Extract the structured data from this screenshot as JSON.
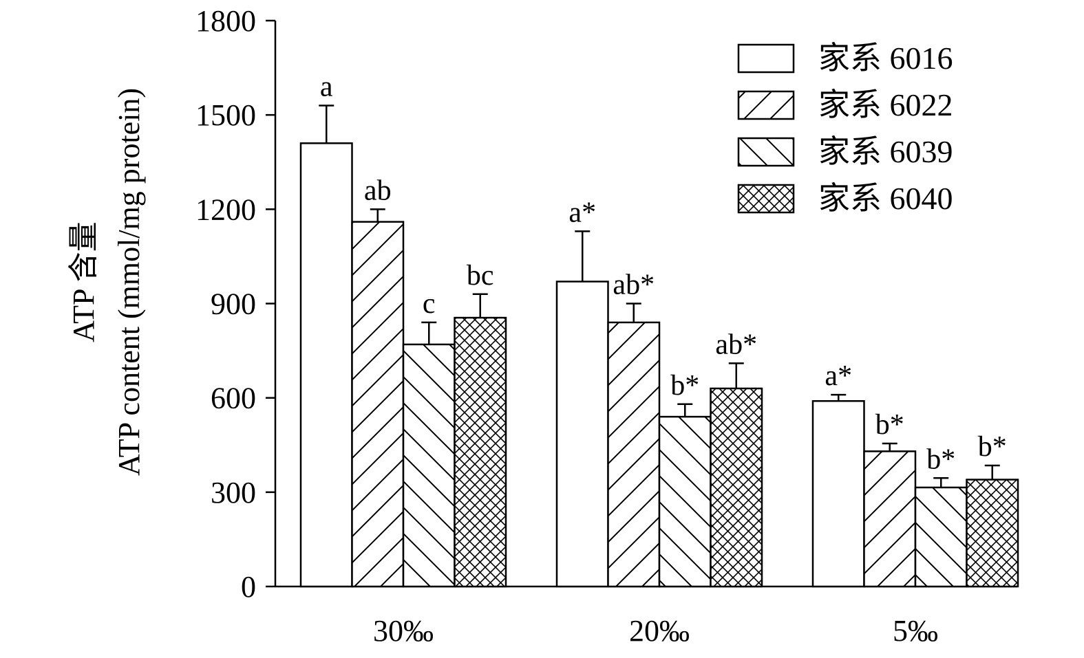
{
  "chart_data": {
    "type": "bar",
    "ylabel_line1": "ATP 含量",
    "ylabel_line2": "ATP content (mmol/mg protein)",
    "xlabel": "",
    "ylim": [
      0,
      1800
    ],
    "yticks": [
      "0",
      "300",
      "600",
      "900",
      "1200",
      "1500",
      "1800"
    ],
    "ytick_values": [
      0,
      300,
      600,
      900,
      1200,
      1500,
      1800
    ],
    "categories": [
      "30‰",
      "20‰",
      "5‰"
    ],
    "legend_position": "top-right",
    "grid": false,
    "series": [
      {
        "name": "家系 6016",
        "pattern": "none",
        "values": [
          1410,
          970,
          590
        ],
        "errors": [
          120,
          160,
          20
        ],
        "labels": [
          "a",
          "a*",
          "a*"
        ]
      },
      {
        "name": "家系 6022",
        "pattern": "diagonal-right",
        "values": [
          1160,
          840,
          430
        ],
        "errors": [
          40,
          60,
          25
        ],
        "labels": [
          "ab",
          "ab*",
          "b*"
        ]
      },
      {
        "name": "家系 6039",
        "pattern": "diagonal-left",
        "values": [
          770,
          540,
          315
        ],
        "errors": [
          70,
          40,
          30
        ],
        "labels": [
          "c",
          "b*",
          "b*"
        ]
      },
      {
        "name": "家系 6040",
        "pattern": "crosshatch",
        "values": [
          855,
          630,
          340
        ],
        "errors": [
          75,
          80,
          45
        ],
        "labels": [
          "bc",
          "ab*",
          "b*"
        ]
      }
    ]
  }
}
